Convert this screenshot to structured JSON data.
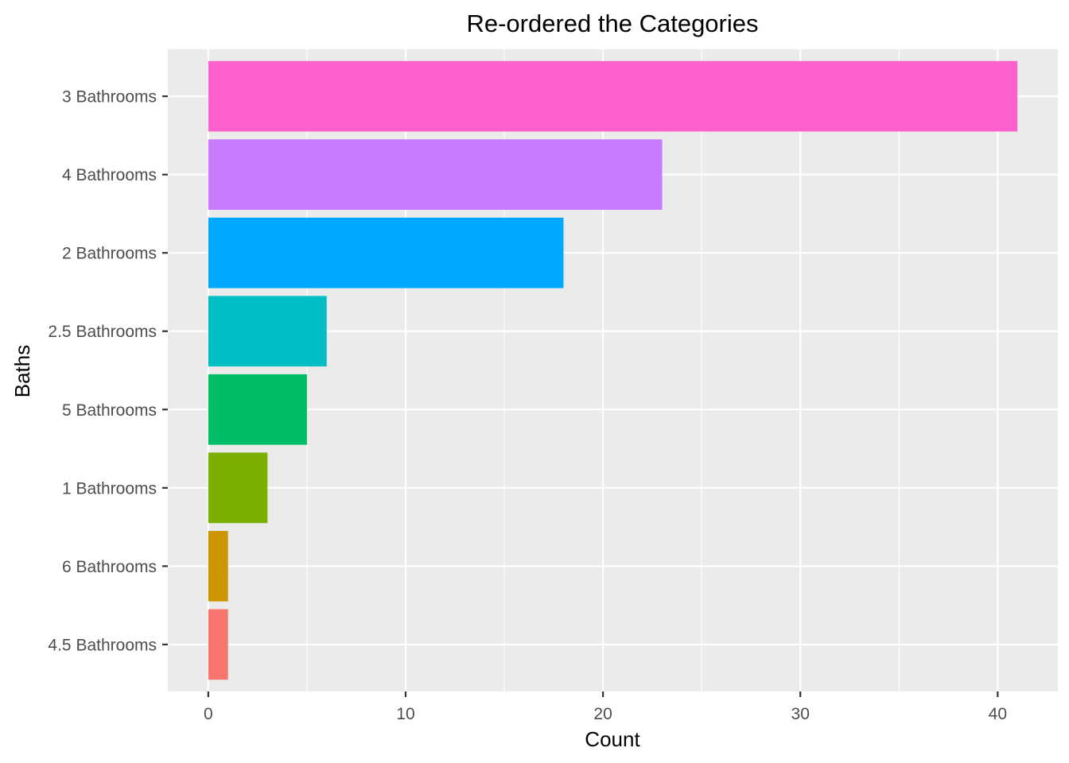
{
  "chart_data": {
    "type": "bar",
    "orientation": "horizontal",
    "title": "Re-ordered the Categories",
    "xlabel": "Count",
    "ylabel": "Baths",
    "categories": [
      "3 Bathrooms",
      "4 Bathrooms",
      "2 Bathrooms",
      "2.5 Bathrooms",
      "5 Bathrooms",
      "1 Bathrooms",
      "6 Bathrooms",
      "4.5 Bathrooms"
    ],
    "values": [
      41,
      23,
      18,
      6,
      5,
      3,
      1,
      1
    ],
    "colors": [
      "#FF61CC",
      "#C77CFF",
      "#00A9FF",
      "#00BFC4",
      "#00BE67",
      "#7CAE00",
      "#CD9600",
      "#F8766D"
    ],
    "xlim": [
      -2.05,
      43.05
    ],
    "xticks": [
      0,
      10,
      20,
      30,
      40
    ],
    "xtick_labels": [
      "0",
      "10",
      "20",
      "30",
      "40"
    ],
    "grid": true,
    "panel_background": "#EBEBEB",
    "grid_color": "#FFFFFF",
    "legend": "none"
  }
}
